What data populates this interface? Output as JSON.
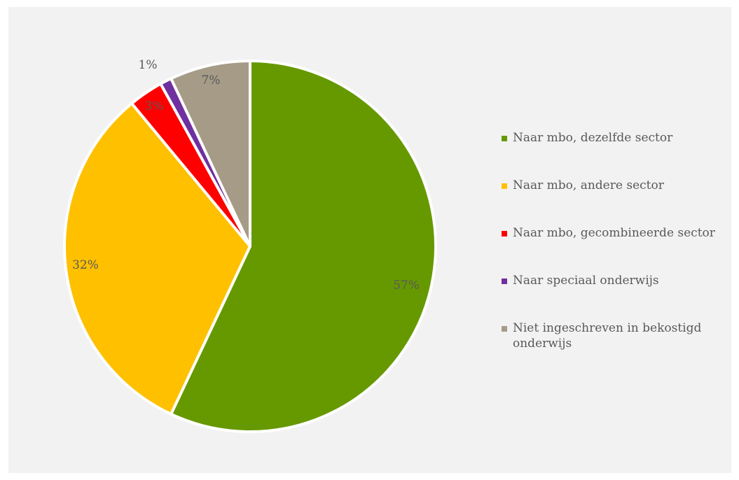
{
  "chart_data": {
    "type": "pie",
    "categories": [
      "Naar mbo, dezelfde sector",
      "Naar mbo, andere sector",
      "Naar mbo, gecombineerde sector",
      "Naar speciaal onderwijs",
      "Niet ingeschreven in bekostigd onderwijs"
    ],
    "values": [
      57,
      32,
      3,
      1,
      7
    ],
    "labels": [
      "57%",
      "32%",
      "3%",
      "1%",
      "7%"
    ],
    "colors": [
      "#669900",
      "#ffc000",
      "#ff0000",
      "#7030a0",
      "#a59b87"
    ],
    "legend": "right"
  }
}
